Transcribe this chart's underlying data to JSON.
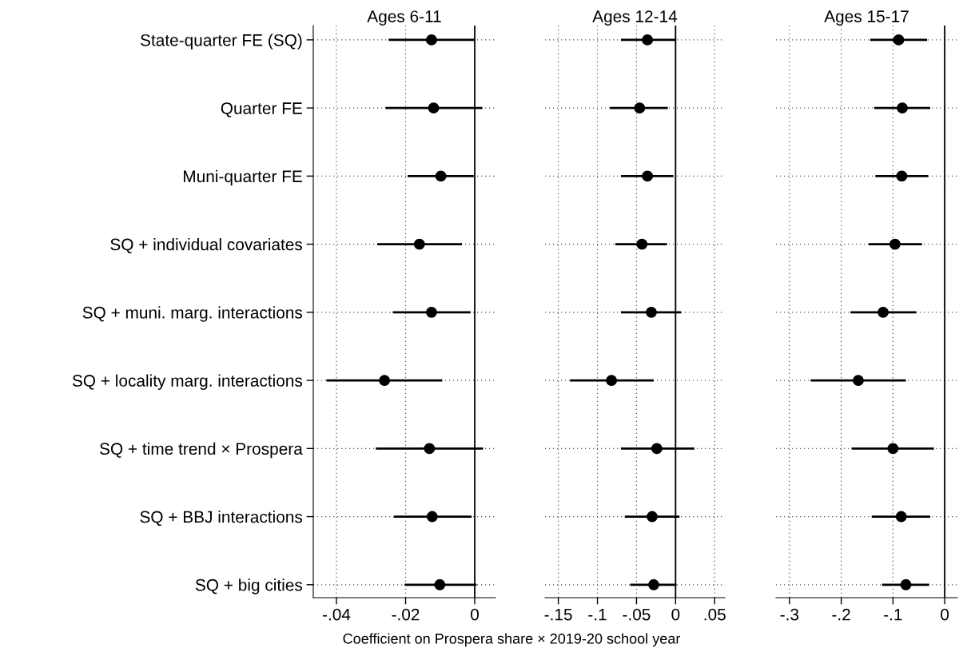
{
  "chart_data": [
    {
      "type": "scatter",
      "orientation": "horizontal",
      "title": "Ages 6-11",
      "categories": [
        "State-quarter FE (SQ)",
        "Quarter FE",
        "Muni-quarter FE",
        "SQ + individual covariates",
        "SQ + muni. marg. interactions",
        "SQ + locality marg. interactions",
        "SQ + time trend × Prospera",
        "SQ + BBJ interactions",
        "SQ + big cities"
      ],
      "series": [
        {
          "color": "#000000",
          "values": [
            -0.0125,
            -0.0119,
            -0.0098,
            -0.016,
            -0.0125,
            -0.0261,
            -0.0131,
            -0.0123,
            -0.0101
          ],
          "errors": [
            [
              -0.0249,
              0.0
            ],
            [
              -0.0258,
              0.0022
            ],
            [
              -0.0194,
              -0.0003
            ],
            [
              -0.0282,
              -0.0037
            ],
            [
              -0.0237,
              -0.0012
            ],
            [
              -0.0429,
              -0.0094
            ],
            [
              -0.0286,
              0.0024
            ],
            [
              -0.0234,
              -0.0009
            ],
            [
              -0.0203,
              0.0005
            ]
          ]
        }
      ],
      "xlim": [
        -0.0467,
        0.006
      ],
      "xticks": [
        {
          "value": -0.04,
          "label": "-.04"
        },
        {
          "value": -0.02,
          "label": "-.02"
        },
        {
          "value": 0,
          "label": "0"
        }
      ],
      "ref_lines": [
        {
          "axis": "x",
          "value": 0,
          "color": "#000000"
        }
      ],
      "grid": true,
      "marker": "circle"
    },
    {
      "type": "scatter",
      "orientation": "horizontal",
      "title": "Ages 12-14",
      "xlabel": "Coefficient on Prospera share × 2019-20 school year",
      "categories": [
        null,
        null,
        null,
        null,
        null,
        null,
        null,
        null,
        null
      ],
      "series": [
        {
          "color": "#000000",
          "values": [
            -0.036,
            -0.046,
            -0.036,
            -0.043,
            -0.031,
            -0.082,
            -0.024,
            -0.03,
            -0.028
          ],
          "errors": [
            [
              -0.07,
              0.0
            ],
            [
              -0.084,
              -0.01
            ],
            [
              -0.07,
              -0.003
            ],
            [
              -0.077,
              -0.011
            ],
            [
              -0.07,
              0.007
            ],
            [
              -0.135,
              -0.028
            ],
            [
              -0.07,
              0.024
            ],
            [
              -0.065,
              0.005
            ],
            [
              -0.058,
              0.001
            ]
          ]
        }
      ],
      "xlim": [
        -0.167,
        0.063
      ],
      "xticks": [
        {
          "value": -0.15,
          "label": "-.15"
        },
        {
          "value": -0.1,
          "label": "-.1"
        },
        {
          "value": -0.05,
          "label": "-.05"
        },
        {
          "value": 0,
          "label": "0"
        },
        {
          "value": 0.05,
          "label": ".05"
        }
      ],
      "ref_lines": [
        {
          "axis": "x",
          "value": 0,
          "color": "#000000"
        }
      ],
      "grid": true,
      "marker": "circle",
      "tick_labels": "x"
    },
    {
      "type": "scatter",
      "orientation": "horizontal",
      "title": "Ages 15-17",
      "categories": [
        null,
        null,
        null,
        null,
        null,
        null,
        null,
        null,
        null
      ],
      "series": [
        {
          "color": "#000000",
          "values": [
            -0.089,
            -0.082,
            -0.083,
            -0.096,
            -0.119,
            -0.167,
            -0.1,
            -0.084,
            -0.075
          ],
          "errors": [
            [
              -0.144,
              -0.034
            ],
            [
              -0.136,
              -0.028
            ],
            [
              -0.134,
              -0.032
            ],
            [
              -0.147,
              -0.044
            ],
            [
              -0.182,
              -0.055
            ],
            [
              -0.259,
              -0.075
            ],
            [
              -0.18,
              -0.021
            ],
            [
              -0.141,
              -0.028
            ],
            [
              -0.121,
              -0.03
            ]
          ]
        }
      ],
      "xlim": [
        -0.326,
        0.0245
      ],
      "xticks": [
        {
          "value": -0.3,
          "label": "-.3"
        },
        {
          "value": -0.2,
          "label": "-.2"
        },
        {
          "value": -0.1,
          "label": "-.1"
        },
        {
          "value": 0,
          "label": "0"
        }
      ],
      "ref_lines": [
        {
          "axis": "x",
          "value": 0,
          "color": "#000000"
        }
      ],
      "grid": true,
      "marker": "circle",
      "tick_labels": "x"
    }
  ]
}
